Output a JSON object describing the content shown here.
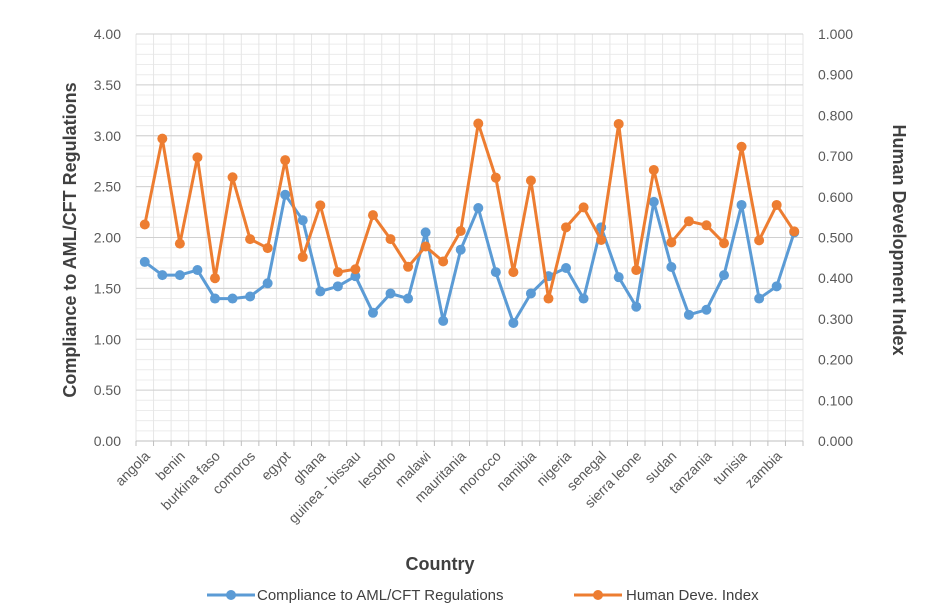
{
  "chart_data": {
    "type": "line",
    "title": "",
    "xlabel": "Country",
    "ylabel": "Compliance to AML/CFT Regulations",
    "y2label": "Human Development Index",
    "ylim": [
      0,
      4
    ],
    "y2lim": [
      0,
      1
    ],
    "yticks": [
      "0.00",
      "0.50",
      "1.00",
      "1.50",
      "2.00",
      "2.50",
      "3.00",
      "3.50",
      "4.00"
    ],
    "y2ticks": [
      "0.000",
      "0.100",
      "0.200",
      "0.300",
      "0.400",
      "0.500",
      "0.600",
      "0.700",
      "0.800",
      "0.900",
      "1.000"
    ],
    "category_labels": [
      "angola",
      "benin",
      "burkina faso",
      "comoros",
      "egypt",
      "ghana",
      "guinea - bissau",
      "lesotho",
      "malawi",
      "mauritania",
      "morocco",
      "namibia",
      "nigeria",
      "senegal",
      "sierra leone",
      "sudan",
      "tanzania",
      "tunisia",
      "zambia"
    ],
    "grid": true,
    "legend": "bottom",
    "point_count": 38,
    "series": [
      {
        "name": "Compliance to AML/CFT Regulations",
        "axis": "left",
        "color": "#5b9bd5",
        "values": [
          1.76,
          1.63,
          1.63,
          1.68,
          1.4,
          1.4,
          1.42,
          1.55,
          2.42,
          2.17,
          1.47,
          1.52,
          1.62,
          1.26,
          1.45,
          1.4,
          2.05,
          1.18,
          1.88,
          2.29,
          1.66,
          1.16,
          1.45,
          1.62,
          1.7,
          1.4,
          2.1,
          1.61,
          1.32,
          2.35,
          1.71,
          1.24,
          1.29,
          1.63,
          2.32,
          1.4,
          1.52,
          2.05
        ]
      },
      {
        "name": "Human Deve. Index",
        "axis": "right",
        "color": "#ed7d31",
        "values": [
          0.532,
          0.743,
          0.485,
          0.697,
          0.4,
          0.648,
          0.496,
          0.474,
          0.69,
          0.452,
          0.579,
          0.415,
          0.422,
          0.555,
          0.496,
          0.428,
          0.478,
          0.441,
          0.516,
          0.78,
          0.647,
          0.415,
          0.64,
          0.35,
          0.525,
          0.574,
          0.494,
          0.779,
          0.42,
          0.666,
          0.488,
          0.54,
          0.53,
          0.486,
          0.723,
          0.493,
          0.58,
          0.515
        ]
      }
    ]
  }
}
